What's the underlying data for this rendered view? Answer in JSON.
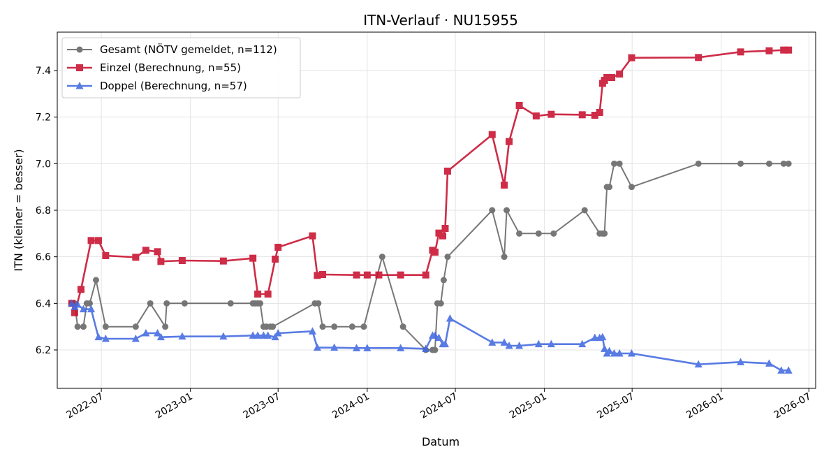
{
  "chart_data": {
    "type": "line",
    "title": "ITN-Verlauf · NU15955",
    "xlabel": "Datum",
    "ylabel": "ITN  (kleiner = besser)",
    "xlim": [
      "2022-04-01",
      "2026-07-15"
    ],
    "ylim": [
      6.035,
      7.565
    ],
    "x_ticks": [
      "2022-07-01",
      "2023-01-01",
      "2023-07-01",
      "2024-01-01",
      "2024-07-01",
      "2025-01-01",
      "2025-07-01",
      "2026-01-01",
      "2026-07-01"
    ],
    "x_tick_labels": [
      "2022-07",
      "2023-01",
      "2023-07",
      "2024-01",
      "2024-07",
      "2025-01",
      "2025-07",
      "2026-01",
      "2026-07"
    ],
    "y_ticks": [
      6.2,
      6.4,
      6.6,
      6.8,
      7.0,
      7.2,
      7.4
    ],
    "y_tick_labels": [
      "6.2",
      "6.4",
      "6.6",
      "6.8",
      "7.0",
      "7.2",
      "7.4"
    ],
    "grid": true,
    "legend_position": "top-left",
    "series": [
      {
        "name": "Gesamt (NÖTV gemeldet, n=112)",
        "color": "#444444",
        "marker": "circle",
        "x": [
          "2022-05-01",
          "2022-05-07",
          "2022-05-13",
          "2022-05-25",
          "2022-06-01",
          "2022-06-07",
          "2022-06-20",
          "2022-07-10",
          "2022-09-10",
          "2022-10-10",
          "2022-11-10",
          "2022-11-13",
          "2022-12-20",
          "2023-03-25",
          "2023-05-10",
          "2023-05-15",
          "2023-05-20",
          "2023-05-25",
          "2023-06-01",
          "2023-06-07",
          "2023-06-15",
          "2023-06-20",
          "2023-09-15",
          "2023-09-22",
          "2023-10-01",
          "2023-10-25",
          "2023-12-01",
          "2023-12-25",
          "2024-02-01",
          "2024-03-15",
          "2024-05-01",
          "2024-05-15",
          "2024-05-20",
          "2024-05-25",
          "2024-06-01",
          "2024-06-07",
          "2024-06-15",
          "2024-09-15",
          "2024-10-10",
          "2024-10-15",
          "2024-11-10",
          "2024-12-20",
          "2025-01-20",
          "2025-03-25",
          "2025-04-25",
          "2025-05-01",
          "2025-05-05",
          "2025-05-10",
          "2025-05-15",
          "2025-05-25",
          "2025-06-05",
          "2025-06-30",
          "2025-11-15",
          "2026-02-10",
          "2026-04-10",
          "2026-05-10",
          "2026-05-20"
        ],
        "values": [
          6.4,
          6.4,
          6.3,
          6.3,
          6.4,
          6.4,
          6.5,
          6.3,
          6.3,
          6.4,
          6.3,
          6.4,
          6.4,
          6.4,
          6.4,
          6.4,
          6.4,
          6.4,
          6.3,
          6.3,
          6.3,
          6.3,
          6.4,
          6.4,
          6.3,
          6.3,
          6.3,
          6.3,
          6.6,
          6.3,
          6.2,
          6.2,
          6.2,
          6.4,
          6.4,
          6.5,
          6.6,
          6.8,
          6.6,
          6.8,
          6.7,
          6.7,
          6.7,
          6.8,
          6.7,
          6.7,
          6.7,
          6.9,
          6.9,
          7.0,
          7.0,
          6.9,
          7.0,
          7.0,
          7.0,
          7.0,
          7.0
        ]
      },
      {
        "name": "Einzel (Berechnung, n=55)",
        "color": "#c8102e",
        "marker": "square",
        "x": [
          "2022-05-01",
          "2022-05-07",
          "2022-05-20",
          "2022-06-10",
          "2022-06-25",
          "2022-07-10",
          "2022-09-10",
          "2022-10-01",
          "2022-10-25",
          "2022-11-01",
          "2022-12-15",
          "2023-03-10",
          "2023-05-10",
          "2023-05-20",
          "2023-06-10",
          "2023-06-25",
          "2023-07-01",
          "2023-09-10",
          "2023-09-20",
          "2023-10-01",
          "2023-12-10",
          "2024-01-01",
          "2024-01-25",
          "2024-03-10",
          "2024-05-01",
          "2024-05-15",
          "2024-05-20",
          "2024-05-28",
          "2024-06-05",
          "2024-06-10",
          "2024-06-15",
          "2024-09-15",
          "2024-10-10",
          "2024-10-20",
          "2024-11-10",
          "2024-12-15",
          "2025-01-15",
          "2025-03-20",
          "2025-04-15",
          "2025-04-25",
          "2025-05-01",
          "2025-05-05",
          "2025-05-10",
          "2025-05-20",
          "2025-06-05",
          "2025-06-30",
          "2025-11-15",
          "2026-02-10",
          "2026-04-10",
          "2026-05-10",
          "2026-05-20"
        ],
        "values": [
          6.4,
          6.36,
          6.46,
          6.67,
          6.67,
          6.605,
          6.598,
          6.628,
          6.622,
          6.58,
          6.584,
          6.582,
          6.594,
          6.44,
          6.44,
          6.59,
          6.641,
          6.69,
          6.52,
          6.524,
          6.522,
          6.522,
          6.522,
          6.522,
          6.522,
          6.628,
          6.62,
          6.702,
          6.69,
          6.722,
          6.968,
          7.125,
          6.908,
          7.095,
          7.25,
          7.205,
          7.212,
          7.21,
          7.208,
          7.22,
          7.345,
          7.358,
          7.37,
          7.37,
          7.385,
          7.455,
          7.456,
          7.48,
          7.485,
          7.488,
          7.488
        ]
      },
      {
        "name": "Doppel (Berechnung, n=57)",
        "color": "#4169e1",
        "marker": "triangle",
        "x": [
          "2022-05-01",
          "2022-05-07",
          "2022-05-13",
          "2022-05-25",
          "2022-06-10",
          "2022-06-25",
          "2022-07-10",
          "2022-09-10",
          "2022-10-01",
          "2022-10-25",
          "2022-11-01",
          "2022-12-15",
          "2023-03-10",
          "2023-05-10",
          "2023-05-20",
          "2023-06-01",
          "2023-06-10",
          "2023-06-25",
          "2023-07-01",
          "2023-09-10",
          "2023-09-20",
          "2023-10-25",
          "2023-12-10",
          "2024-01-01",
          "2024-03-10",
          "2024-05-01",
          "2024-05-15",
          "2024-05-20",
          "2024-05-28",
          "2024-06-05",
          "2024-06-10",
          "2024-06-20",
          "2024-09-15",
          "2024-10-10",
          "2024-10-20",
          "2024-11-10",
          "2024-12-20",
          "2025-01-15",
          "2025-03-20",
          "2025-04-15",
          "2025-04-25",
          "2025-05-01",
          "2025-05-05",
          "2025-05-10",
          "2025-05-15",
          "2025-05-25",
          "2025-06-05",
          "2025-06-30",
          "2025-11-15",
          "2026-02-10",
          "2026-04-10",
          "2026-05-05",
          "2026-05-20"
        ],
        "values": [
          6.4,
          6.385,
          6.395,
          6.375,
          6.375,
          6.255,
          6.248,
          6.248,
          6.272,
          6.272,
          6.255,
          6.258,
          6.258,
          6.262,
          6.262,
          6.262,
          6.262,
          6.255,
          6.272,
          6.28,
          6.21,
          6.21,
          6.208,
          6.208,
          6.208,
          6.205,
          6.262,
          6.262,
          6.252,
          6.225,
          6.225,
          6.335,
          6.232,
          6.232,
          6.218,
          6.218,
          6.225,
          6.225,
          6.225,
          6.252,
          6.252,
          6.255,
          6.205,
          6.185,
          6.195,
          6.185,
          6.185,
          6.185,
          6.138,
          6.148,
          6.142,
          6.112,
          6.112
        ]
      }
    ]
  }
}
